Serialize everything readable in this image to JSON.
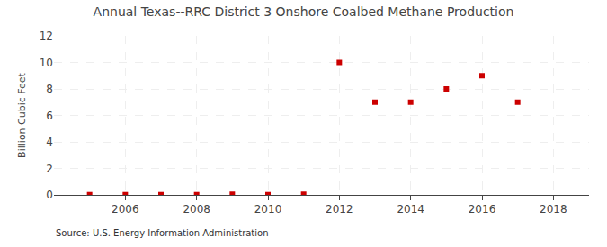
{
  "chart_data": {
    "type": "scatter",
    "title": "Annual Texas--RRC District 3 Onshore Coalbed Methane Production",
    "ylabel": "Billion Cubic Feet",
    "annotations": [
      "Source: U.S. Energy Information Administration"
    ],
    "x": [
      2005,
      2006,
      2007,
      2008,
      2009,
      2010,
      2011,
      2012,
      2013,
      2014,
      2015,
      2016,
      2017
    ],
    "values": [
      0.02,
      0.02,
      0.02,
      0.02,
      0.05,
      0.02,
      0.05,
      10.0,
      7.0,
      7.0,
      8.0,
      9.0,
      7.0
    ],
    "color": "#cc0000",
    "marker": "square",
    "xlim": [
      2004,
      2019
    ],
    "ylim": [
      0,
      12
    ],
    "xticks": [
      2006,
      2008,
      2010,
      2012,
      2014,
      2016,
      2018
    ],
    "yticks": [
      0,
      2,
      4,
      6,
      8,
      10,
      12
    ],
    "grid": true
  }
}
